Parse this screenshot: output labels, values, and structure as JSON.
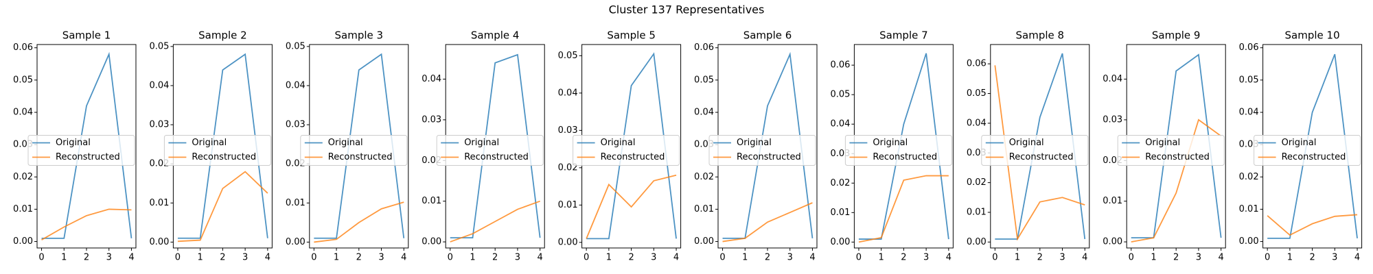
{
  "title": "Cluster 137 Representatives",
  "chart_data": [
    {
      "type": "line",
      "title": "Sample 1",
      "x": [
        0,
        1,
        2,
        3,
        4
      ],
      "xlim": [
        -0.2,
        4.2
      ],
      "xticks": [
        0,
        1,
        2,
        3,
        4
      ],
      "ylim": [
        -0.002,
        0.061
      ],
      "yticks": [
        {
          "value": 0,
          "label": "0.00"
        },
        {
          "value": 0.01,
          "label": "0.01"
        },
        {
          "value": 0.02,
          "label": "0.02"
        },
        {
          "value": 0.03,
          "label": "0.03"
        },
        {
          "value": 0.04,
          "label": "0.04"
        },
        {
          "value": 0.05,
          "label": "0.05"
        },
        {
          "value": 0.06,
          "label": "0.06"
        }
      ],
      "legend": "center left",
      "series": [
        {
          "name": "Original",
          "color": "#1f77b4",
          "values": [
            0.001,
            0.001,
            0.042,
            0.058,
            0.001
          ]
        },
        {
          "name": "Reconstructed",
          "color": "#ff7f0e",
          "values": [
            0.0005,
            0.0045,
            0.008,
            0.01,
            0.0098
          ]
        }
      ]
    },
    {
      "type": "line",
      "title": "Sample 2",
      "x": [
        0,
        1,
        2,
        3,
        4
      ],
      "xlim": [
        -0.2,
        4.2
      ],
      "xticks": [
        0,
        1,
        2,
        3,
        4
      ],
      "ylim": [
        -0.0015,
        0.0505
      ],
      "yticks": [
        {
          "value": 0,
          "label": "0.00"
        },
        {
          "value": 0.01,
          "label": "0.01"
        },
        {
          "value": 0.02,
          "label": "0.02"
        },
        {
          "value": 0.03,
          "label": "0.03"
        },
        {
          "value": 0.04,
          "label": "0.04"
        },
        {
          "value": 0.05,
          "label": "0.05"
        }
      ],
      "legend": "center left",
      "series": [
        {
          "name": "Original",
          "color": "#1f77b4",
          "values": [
            0.001,
            0.001,
            0.044,
            0.048,
            0.001
          ]
        },
        {
          "name": "Reconstructed",
          "color": "#ff7f0e",
          "values": [
            0.0002,
            0.0005,
            0.0137,
            0.018,
            0.0125
          ]
        }
      ]
    },
    {
      "type": "line",
      "title": "Sample 3",
      "x": [
        0,
        1,
        2,
        3,
        4
      ],
      "xlim": [
        -0.2,
        4.2
      ],
      "xticks": [
        0,
        1,
        2,
        3,
        4
      ],
      "ylim": [
        -0.0015,
        0.0505
      ],
      "yticks": [
        {
          "value": 0,
          "label": "0.00"
        },
        {
          "value": 0.01,
          "label": "0.01"
        },
        {
          "value": 0.02,
          "label": "0.02"
        },
        {
          "value": 0.03,
          "label": "0.03"
        },
        {
          "value": 0.04,
          "label": "0.04"
        },
        {
          "value": 0.05,
          "label": "0.05"
        }
      ],
      "legend": "center left",
      "series": [
        {
          "name": "Original",
          "color": "#1f77b4",
          "values": [
            0.001,
            0.001,
            0.044,
            0.048,
            0.001
          ]
        },
        {
          "name": "Reconstructed",
          "color": "#ff7f0e",
          "values": [
            0,
            0.0007,
            0.005,
            0.0085,
            0.0102
          ]
        }
      ]
    },
    {
      "type": "line",
      "title": "Sample 4",
      "x": [
        0,
        1,
        2,
        3,
        4
      ],
      "xlim": [
        -0.2,
        4.2
      ],
      "xticks": [
        0,
        1,
        2,
        3,
        4
      ],
      "ylim": [
        -0.0015,
        0.0485
      ],
      "yticks": [
        {
          "value": 0,
          "label": "0.00"
        },
        {
          "value": 0.01,
          "label": "0.01"
        },
        {
          "value": 0.02,
          "label": "0.02"
        },
        {
          "value": 0.03,
          "label": "0.03"
        },
        {
          "value": 0.04,
          "label": "0.04"
        }
      ],
      "legend": "center left",
      "series": [
        {
          "name": "Original",
          "color": "#1f77b4",
          "values": [
            0.001,
            0.001,
            0.044,
            0.046,
            0.001
          ]
        },
        {
          "name": "Reconstructed",
          "color": "#ff7f0e",
          "values": [
            0,
            0.002,
            0.005,
            0.008,
            0.01
          ]
        }
      ]
    },
    {
      "type": "line",
      "title": "Sample 5",
      "x": [
        0,
        1,
        2,
        3,
        4
      ],
      "xlim": [
        -0.2,
        4.2
      ],
      "xticks": [
        0,
        1,
        2,
        3,
        4
      ],
      "ylim": [
        -0.0015,
        0.053
      ],
      "yticks": [
        {
          "value": 0,
          "label": "0.00"
        },
        {
          "value": 0.01,
          "label": "0.01"
        },
        {
          "value": 0.02,
          "label": "0.02"
        },
        {
          "value": 0.03,
          "label": "0.03"
        },
        {
          "value": 0.04,
          "label": "0.04"
        },
        {
          "value": 0.05,
          "label": "0.05"
        }
      ],
      "legend": "center left",
      "series": [
        {
          "name": "Original",
          "color": "#1f77b4",
          "values": [
            0.001,
            0.001,
            0.042,
            0.0505,
            0.001
          ]
        },
        {
          "name": "Reconstructed",
          "color": "#ff7f0e",
          "values": [
            0.001,
            0.0155,
            0.0095,
            0.0165,
            0.018
          ]
        }
      ]
    },
    {
      "type": "line",
      "title": "Sample 6",
      "x": [
        0,
        1,
        2,
        3,
        4
      ],
      "xlim": [
        -0.2,
        4.2
      ],
      "xticks": [
        0,
        1,
        2,
        3,
        4
      ],
      "ylim": [
        -0.002,
        0.061
      ],
      "yticks": [
        {
          "value": 0,
          "label": "0.00"
        },
        {
          "value": 0.01,
          "label": "0.01"
        },
        {
          "value": 0.02,
          "label": "0.02"
        },
        {
          "value": 0.03,
          "label": "0.03"
        },
        {
          "value": 0.04,
          "label": "0.04"
        },
        {
          "value": 0.05,
          "label": "0.05"
        },
        {
          "value": 0.06,
          "label": "0.06"
        }
      ],
      "legend": "center left",
      "series": [
        {
          "name": "Original",
          "color": "#1f77b4",
          "values": [
            0.001,
            0.001,
            0.042,
            0.058,
            0.001
          ]
        },
        {
          "name": "Reconstructed",
          "color": "#ff7f0e",
          "values": [
            0,
            0.001,
            0.006,
            0.009,
            0.012
          ]
        }
      ]
    },
    {
      "type": "line",
      "title": "Sample 7",
      "x": [
        0,
        1,
        2,
        3,
        4
      ],
      "xlim": [
        -0.2,
        4.2
      ],
      "xticks": [
        0,
        1,
        2,
        3,
        4
      ],
      "ylim": [
        -0.002,
        0.067
      ],
      "yticks": [
        {
          "value": 0,
          "label": "0.00"
        },
        {
          "value": 0.01,
          "label": "0.01"
        },
        {
          "value": 0.02,
          "label": "0.02"
        },
        {
          "value": 0.03,
          "label": "0.03"
        },
        {
          "value": 0.04,
          "label": "0.04"
        },
        {
          "value": 0.05,
          "label": "0.05"
        },
        {
          "value": 0.06,
          "label": "0.06"
        }
      ],
      "legend": "center left",
      "series": [
        {
          "name": "Original",
          "color": "#1f77b4",
          "values": [
            0.001,
            0.001,
            0.04,
            0.064,
            0.001
          ]
        },
        {
          "name": "Reconstructed",
          "color": "#ff7f0e",
          "values": [
            0,
            0.0015,
            0.021,
            0.0225,
            0.0225
          ]
        }
      ]
    },
    {
      "type": "line",
      "title": "Sample 8",
      "x": [
        0,
        1,
        2,
        3,
        4
      ],
      "xlim": [
        -0.2,
        4.2
      ],
      "xticks": [
        0,
        1,
        2,
        3,
        4
      ],
      "ylim": [
        -0.002,
        0.0665
      ],
      "yticks": [
        {
          "value": 0,
          "label": "0.00"
        },
        {
          "value": 0.01,
          "label": "0.01"
        },
        {
          "value": 0.02,
          "label": "0.02"
        },
        {
          "value": 0.03,
          "label": "0.03"
        },
        {
          "value": 0.04,
          "label": "0.04"
        },
        {
          "value": 0.05,
          "label": "0.05"
        },
        {
          "value": 0.06,
          "label": "0.06"
        }
      ],
      "legend": "center left",
      "series": [
        {
          "name": "Original",
          "color": "#1f77b4",
          "values": [
            0.001,
            0.001,
            0.042,
            0.0635,
            0.001
          ]
        },
        {
          "name": "Reconstructed",
          "color": "#ff7f0e",
          "values": [
            0.0595,
            0.001,
            0.0135,
            0.015,
            0.0125
          ]
        }
      ]
    },
    {
      "type": "line",
      "title": "Sample 9",
      "x": [
        0,
        1,
        2,
        3,
        4
      ],
      "xlim": [
        -0.2,
        4.2
      ],
      "xticks": [
        0,
        1,
        2,
        3,
        4
      ],
      "ylim": [
        -0.0015,
        0.0485
      ],
      "yticks": [
        {
          "value": 0,
          "label": "0.00"
        },
        {
          "value": 0.01,
          "label": "0.01"
        },
        {
          "value": 0.02,
          "label": "0.02"
        },
        {
          "value": 0.03,
          "label": "0.03"
        },
        {
          "value": 0.04,
          "label": "0.04"
        }
      ],
      "legend": "center left",
      "series": [
        {
          "name": "Original",
          "color": "#1f77b4",
          "values": [
            0.001,
            0.001,
            0.042,
            0.046,
            0.001
          ]
        },
        {
          "name": "Reconstructed",
          "color": "#ff7f0e",
          "values": [
            0,
            0.001,
            0.012,
            0.03,
            0.026
          ]
        }
      ]
    },
    {
      "type": "line",
      "title": "Sample 10",
      "x": [
        0,
        1,
        2,
        3,
        4
      ],
      "xlim": [
        -0.2,
        4.2
      ],
      "xticks": [
        0,
        1,
        2,
        3,
        4
      ],
      "ylim": [
        -0.002,
        0.061
      ],
      "yticks": [
        {
          "value": 0,
          "label": "0.00"
        },
        {
          "value": 0.01,
          "label": "0.01"
        },
        {
          "value": 0.02,
          "label": "0.02"
        },
        {
          "value": 0.03,
          "label": "0.03"
        },
        {
          "value": 0.04,
          "label": "0.04"
        },
        {
          "value": 0.05,
          "label": "0.05"
        },
        {
          "value": 0.06,
          "label": "0.06"
        }
      ],
      "legend": "center left",
      "series": [
        {
          "name": "Original",
          "color": "#1f77b4",
          "values": [
            0.001,
            0.001,
            0.04,
            0.058,
            0.001
          ]
        },
        {
          "name": "Reconstructed",
          "color": "#ff7f0e",
          "values": [
            0.008,
            0.002,
            0.0055,
            0.0078,
            0.0083
          ]
        }
      ]
    }
  ]
}
